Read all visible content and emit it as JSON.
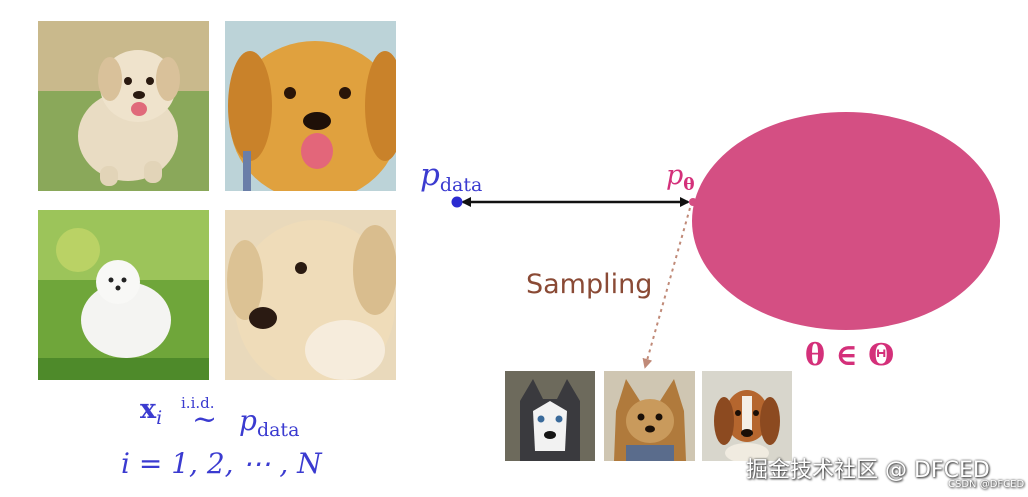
{
  "data_photos": [
    {
      "icon": "golden-puppy-running-photo"
    },
    {
      "icon": "golden-retriever-puppy-photo"
    },
    {
      "icon": "white-pomeranian-photo"
    },
    {
      "icon": "labrador-puppy-closeup-photo"
    }
  ],
  "sample_photos": [
    {
      "icon": "husky-photo"
    },
    {
      "icon": "yorkshire-terrier-photo"
    },
    {
      "icon": "beagle-photo"
    }
  ],
  "labels": {
    "p_data_main": "p",
    "p_data_sub": "data",
    "p_theta_main": "p",
    "p_theta_sub": "θ",
    "sampling": "Sampling",
    "theta_in_Theta": "θ ∈ Θ",
    "x_i": "x",
    "x_i_sub": "i",
    "iid": "i.i.d.",
    "tilde": "~",
    "p_data2_main": "p",
    "p_data2_sub": "data",
    "index_range": "i = 1, 2, ⋯ , N"
  },
  "watermark": {
    "main": "掘金技术社区 @ DFCED",
    "small": "CSDN @DFCED"
  },
  "colors": {
    "blue_math": "#3b3bd0",
    "pink_model": "#d4307a",
    "ellipse_fill": "#d44f83",
    "sampling_text": "#8a4a35",
    "dotted_arrow": "#c08a78"
  }
}
